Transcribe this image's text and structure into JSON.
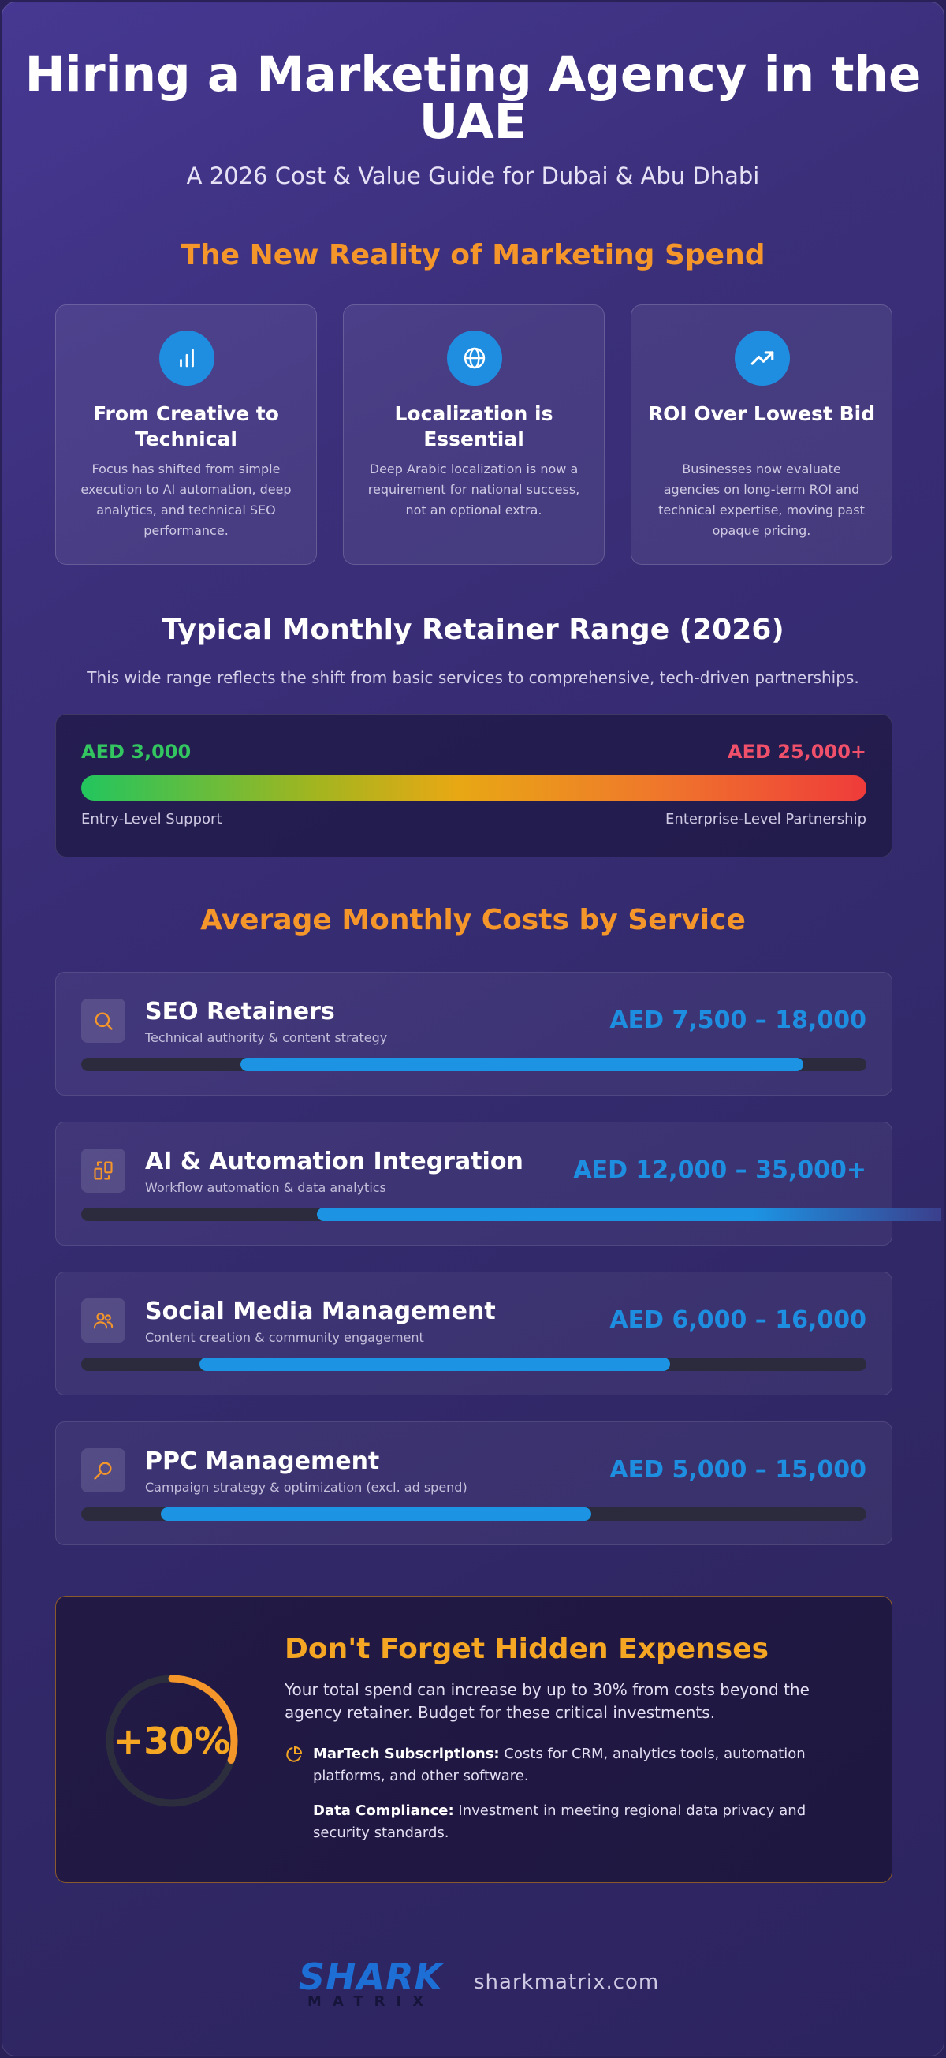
{
  "header": {
    "title": "Hiring a Marketing Agency in the UAE",
    "subtitle": "A 2026 Cost & Value Guide for Dubai & Abu Dhabi"
  },
  "reality": {
    "heading": "The New Reality of Marketing Spend",
    "cards": [
      {
        "icon": "bar-chart-icon",
        "title": "From Creative to Technical",
        "text": "Focus has shifted from simple execution to AI automation, deep analytics, and technical SEO performance."
      },
      {
        "icon": "globe-icon",
        "title": "Localization is Essential",
        "text": "Deep Arabic localization is now a requirement for national success, not an optional extra."
      },
      {
        "icon": "trending-up-icon",
        "title": "ROI Over Lowest Bid",
        "text": "Businesses now evaluate agencies on long-term ROI and technical expertise, moving past opaque pricing."
      }
    ]
  },
  "retainer": {
    "heading": "Typical Monthly Retainer Range (2026)",
    "description": "This wide range reflects the shift from basic services to comprehensive, tech-driven partnerships.",
    "min": "AED 3,000",
    "max": "AED 25,000+",
    "min_label": "Entry-Level Support",
    "max_label": "Enterprise-Level Partnership"
  },
  "services": {
    "heading": "Average Monthly Costs by Service",
    "scale_note": "bars show each price range on a shared track",
    "items": [
      {
        "icon": "search-icon",
        "name": "SEO Retainers",
        "sub": "Technical authority & content strategy",
        "price": "AED 7,500 – 18,000",
        "range_start": 0.203,
        "range_end": 0.92
      },
      {
        "icon": "automation-icon",
        "name": "AI & Automation Integration",
        "sub": "Workflow automation & data analytics",
        "price": "AED 12,000 – 35,000+",
        "range_start": 0.3,
        "range_end": 1.11
      },
      {
        "icon": "users-icon",
        "name": "Social Media Management",
        "sub": "Content creation & community engagement",
        "price": "AED 6,000 – 16,000",
        "range_start": 0.151,
        "range_end": 0.75
      },
      {
        "icon": "magnifier-icon",
        "name": "PPC Management",
        "sub": "Campaign strategy & optimization (excl. ad spend)",
        "price": "AED 5,000 – 15,000",
        "range_start": 0.101,
        "range_end": 0.65
      }
    ]
  },
  "hidden": {
    "ring_value": "+30%",
    "ring_fraction": 0.3,
    "title": "Don't Forget Hidden Expenses",
    "text": "Your total spend can increase by up to 30% from costs beyond the agency retainer. Budget for these critical investments.",
    "items": [
      {
        "icon": "pie-chart-icon",
        "label": "MarTech Subscriptions:",
        "text": " Costs for CRM, analytics tools, automation platforms, and other software."
      },
      {
        "label": "Data Compliance:",
        "text": " Investment in meeting regional data privacy and security standards."
      }
    ]
  },
  "footer": {
    "logo_main": "SHARK",
    "logo_sub": "MATRIX",
    "website": "sharkmatrix.com"
  },
  "colors": {
    "accent_orange": "#f5962a",
    "price_blue": "#1e8fe0",
    "min_green": "#33c660",
    "max_red": "#f0506a",
    "ring_amber": "#f5a623"
  }
}
